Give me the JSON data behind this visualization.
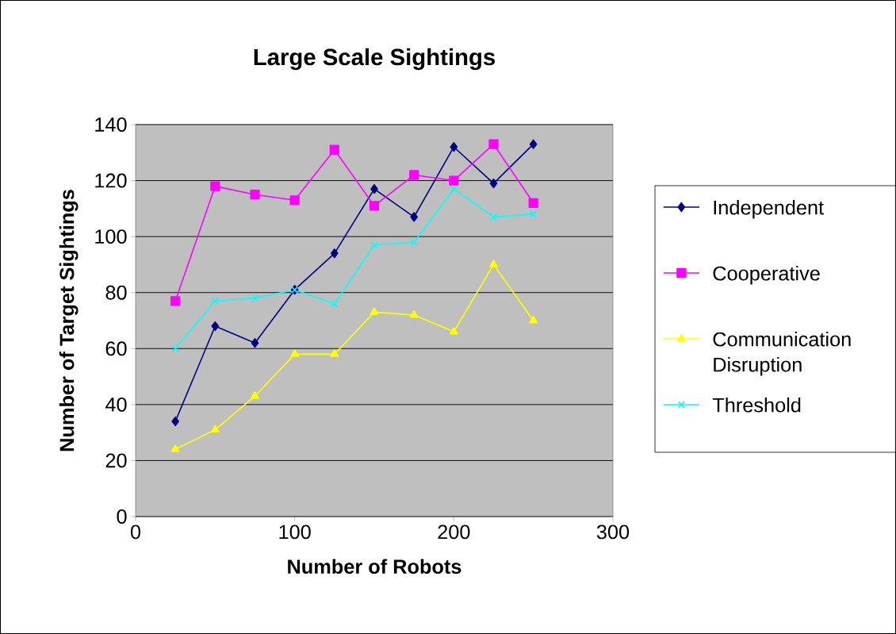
{
  "chart_data": {
    "type": "line",
    "title": "Large Scale Sightings",
    "xlabel": "Number of Robots",
    "ylabel": "Number of Target Sightings",
    "x": [
      25,
      50,
      75,
      100,
      125,
      150,
      175,
      200,
      225,
      250
    ],
    "series": [
      {
        "name": "Independent",
        "color": "#000080",
        "marker": "diamond",
        "values": [
          34,
          68,
          62,
          81,
          94,
          117,
          107,
          132,
          119,
          133
        ]
      },
      {
        "name": "Cooperative",
        "color": "#ff00ff",
        "marker": "square",
        "values": [
          77,
          118,
          115,
          113,
          131,
          111,
          122,
          120,
          133,
          112
        ]
      },
      {
        "name": "Communication Disruption",
        "color": "#ffff00",
        "marker": "triangle",
        "values": [
          24,
          31,
          43,
          58,
          58,
          73,
          72,
          66,
          90,
          70
        ]
      },
      {
        "name": "Threshold",
        "color": "#00ffff",
        "marker": "cross",
        "values": [
          60,
          77,
          78,
          81,
          76,
          97,
          98,
          117,
          107,
          108
        ]
      }
    ],
    "xlim": [
      0,
      300
    ],
    "xticks": [
      0,
      100,
      200,
      300
    ],
    "ylim": [
      0,
      140
    ],
    "yticks": [
      0,
      20,
      40,
      60,
      80,
      100,
      120,
      140
    ],
    "grid": "y",
    "legend": "right",
    "line_style": "solid"
  }
}
